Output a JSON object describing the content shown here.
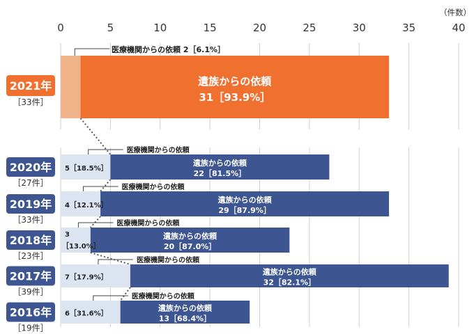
{
  "chart_data": {
    "type": "bar",
    "orientation": "horizontal",
    "stacked": true,
    "unit_label": "（件数）",
    "xlim": [
      0,
      40
    ],
    "x_ticks": [
      0,
      5,
      10,
      15,
      20,
      25,
      30,
      35,
      40
    ],
    "grid": true,
    "colors": {
      "bereaved_2021": "#F07030",
      "medical_2021": "#F0B48A",
      "bereaved_prev": "#3D5591",
      "medical_prev": "#DCE3F1",
      "year_2021_badge": "#F07030",
      "year_prev_badge": "#3D5591"
    },
    "rows": [
      {
        "year": "2021年",
        "total_label": "［33件］",
        "medical": 2,
        "bereaved": 31,
        "medical_label": "医療機関からの依頼 2［6.1%］",
        "bereaved_line1": "遺族からの依頼",
        "bereaved_line2": "31［93.9%］"
      },
      {
        "year": "2020年",
        "total_label": "［27件］",
        "medical": 5,
        "bereaved": 22,
        "medical_callout": "医療機関からの依頼",
        "medical_value_label": "5［18.5%］",
        "bereaved_line1": "遺族からの依頼",
        "bereaved_line2": "22［81.5%］"
      },
      {
        "year": "2019年",
        "total_label": "［33件］",
        "medical": 4,
        "bereaved": 29,
        "medical_callout": "医療機関からの依頼",
        "medical_value_label": "4［12.1%］",
        "bereaved_line1": "遺族からの依頼",
        "bereaved_line2": "29［87.9%］"
      },
      {
        "year": "2018年",
        "total_label": "［23件］",
        "medical": 3,
        "bereaved": 20,
        "medical_callout": "医療機関からの依頼",
        "medical_value_line1": "3",
        "medical_value_line2": "［13.0%］",
        "bereaved_line1": "遺族からの依頼",
        "bereaved_line2": "20［87.0%］"
      },
      {
        "year": "2017年",
        "total_label": "［39件］",
        "medical": 7,
        "bereaved": 32,
        "medical_callout": "医療機関からの依頼",
        "medical_value_label": "7［17.9%］",
        "bereaved_line1": "遺族からの依頼",
        "bereaved_line2": "32［82.1%］"
      },
      {
        "year": "2016年",
        "total_label": "［19件］",
        "medical": 6,
        "bereaved": 13,
        "medical_callout": "医療機関からの依頼",
        "medical_value_label": "6［31.6%］",
        "bereaved_line1": "遺族からの依頼",
        "bereaved_line2": "13［68.4%］"
      }
    ]
  }
}
